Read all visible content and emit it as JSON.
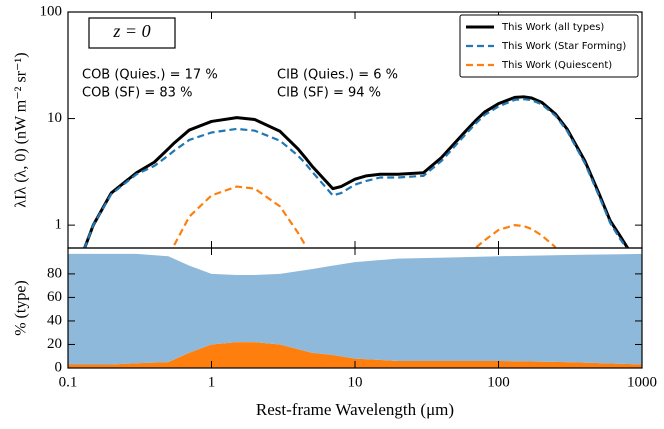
{
  "chart_data": [
    {
      "type": "line",
      "ylabel": "λIλ (λ, 0) (nW m⁻² sr⁻¹)",
      "yscale": "log",
      "xscale": "log",
      "xlim": [
        0.1,
        1000
      ],
      "xticks": [
        0.1,
        1,
        10,
        100,
        1000
      ],
      "ylim": [
        0.61,
        100
      ],
      "yticks": [
        1,
        10,
        100
      ],
      "legend": "upper right",
      "annotations": [
        "z = 0",
        "COB (Quies.) = 17 %",
        "COB (SF) = 83 %",
        "CIB (Quies.) = 6 %",
        "CIB (SF) = 94 %"
      ],
      "x": [
        0.13,
        0.15,
        0.2,
        0.3,
        0.4,
        0.5,
        0.55,
        0.7,
        1,
        1.5,
        2,
        3,
        4,
        4.5,
        5,
        7,
        8,
        10,
        12,
        15,
        20,
        30,
        40,
        60,
        70,
        80,
        100,
        130,
        150,
        170,
        200,
        250,
        300,
        400,
        500,
        600,
        700,
        800
      ],
      "series": [
        {
          "name": "This Work (all types)",
          "color": "#000000",
          "linestyle": "solid",
          "values": [
            0.6,
            1.0,
            2.0,
            3.1,
            3.9,
            5.2,
            5.9,
            7.8,
            9.4,
            10.2,
            9.8,
            7.6,
            5.2,
            4.3,
            3.6,
            2.2,
            2.3,
            2.7,
            2.9,
            3.0,
            3.0,
            3.1,
            4.3,
            7.8,
            9.7,
            11.5,
            13.8,
            15.8,
            16,
            15.6,
            14.2,
            11,
            8,
            4,
            2.0,
            1.1,
            0.8,
            0.6
          ]
        },
        {
          "name": "This Work (Star Forming)",
          "color": "#1f77b4",
          "linestyle": "dashed",
          "values": [
            0.6,
            1.0,
            1.95,
            3.0,
            3.6,
            4.5,
            5.0,
            6.3,
            7.4,
            8.0,
            7.7,
            6.2,
            4.5,
            3.8,
            3.2,
            1.9,
            2.0,
            2.4,
            2.6,
            2.8,
            2.8,
            2.9,
            4.0,
            7.3,
            9.1,
            10.8,
            13.0,
            15.0,
            15.2,
            14.9,
            13.6,
            10.6,
            7.7,
            3.8,
            1.9,
            1.05,
            0.75,
            0.58
          ]
        },
        {
          "name": "This Work (Quiescent)",
          "color": "#ff7f0e",
          "linestyle": "dashed",
          "values": [
            null,
            null,
            null,
            null,
            null,
            null,
            0.65,
            1.2,
            1.9,
            2.3,
            2.2,
            1.5,
            0.85,
            0.65,
            null,
            null,
            null,
            null,
            null,
            null,
            null,
            null,
            null,
            null,
            0.62,
            0.72,
            0.9,
            1.0,
            0.98,
            0.92,
            0.8,
            0.62,
            null,
            null,
            null,
            null,
            null,
            null
          ]
        }
      ]
    },
    {
      "type": "area",
      "stacked": true,
      "xscale": "log",
      "xlabel": "Rest-frame Wavelength (μm)",
      "ylabel": "% (type)",
      "xlim": [
        0.1,
        1000
      ],
      "xticks": [
        0.1,
        1,
        10,
        100,
        1000
      ],
      "ylim": [
        0,
        102
      ],
      "yticks": [
        0,
        20,
        40,
        60,
        80
      ],
      "x": [
        0.1,
        0.2,
        0.3,
        0.5,
        0.7,
        1,
        1.5,
        2,
        3,
        5,
        7,
        10,
        20,
        50,
        100,
        300,
        1000
      ],
      "series": [
        {
          "color": "#ff7f0e",
          "values": [
            3,
            3,
            4,
            5,
            13,
            20,
            22,
            22,
            20,
            13,
            11,
            8,
            6,
            6,
            6,
            5,
            3
          ]
        },
        {
          "color": "#8fb9da",
          "values": [
            94,
            94,
            93,
            90,
            74,
            60,
            57,
            57,
            60,
            71,
            76,
            82,
            87,
            88,
            89,
            91,
            94
          ]
        }
      ]
    }
  ]
}
